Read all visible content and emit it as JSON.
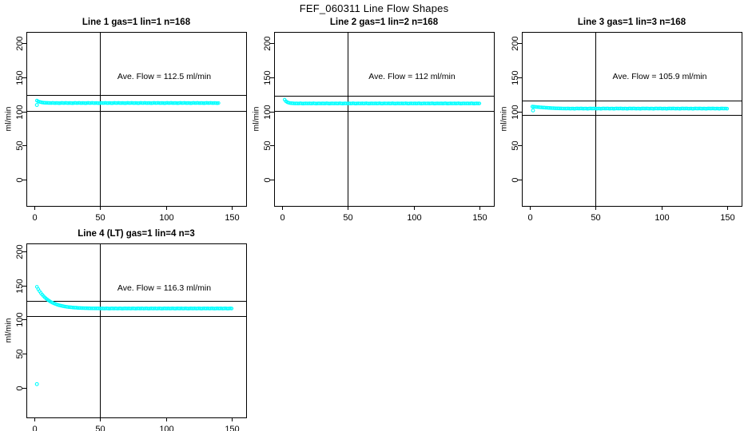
{
  "title": "FEF_060311  Line Flow Shapes",
  "colors": {
    "series": "#00FFFF",
    "axis": "#000000",
    "background": "#FFFFFF"
  },
  "chart_data": [
    {
      "type": "scatter",
      "title": "Line 1 gas=1 lin=1 n=168",
      "annotation": "Ave. Flow =  112.5  ml/min",
      "avg_flow_ml_min": 112.5,
      "n": 168,
      "ylabel": "ml/min",
      "xticks": [
        0,
        50,
        100,
        150
      ],
      "yticks": [
        0,
        50,
        100,
        150,
        200
      ],
      "xlim": [
        -6,
        161
      ],
      "ylim": [
        -39,
        217
      ],
      "vline_x": 50,
      "hlines_y": [
        123.8,
        101.3
      ],
      "marker": "open-circle",
      "series_color": "#00FFFF",
      "x0": 2,
      "dx": 1,
      "y": [
        116,
        114.9,
        114.1,
        113.6,
        113.2,
        112.9,
        112.8,
        112.7,
        112.6,
        112.5,
        112.5,
        112.4,
        112.6,
        112.4,
        112.3,
        112.5,
        112.4,
        112.2,
        112.4,
        112.6,
        112.4,
        112.4,
        112.6,
        112.4,
        112.3,
        112.5,
        112.4,
        112.2,
        112.4,
        112.6,
        112.4,
        112.4,
        112.6,
        112.4,
        112.3,
        112.5,
        112.4,
        112.2,
        112.4,
        112.6,
        112.4,
        112.4,
        112.6,
        112.4,
        112.3,
        112.5,
        112.4,
        112.2,
        112.4,
        112.6,
        112.4,
        112.4,
        112.6,
        112.4,
        112.3,
        112.5,
        112.4,
        112.2,
        112.4,
        112.6,
        112.4,
        112.4,
        112.6,
        112.4,
        112.3,
        112.5,
        112.4,
        112.2,
        112.4,
        112.6,
        112.4,
        112.4,
        112.6,
        112.4,
        112.3,
        112.5,
        112.4,
        112.2,
        112.4,
        112.6,
        112.4,
        112.4,
        112.6,
        112.4,
        112.3,
        112.5,
        112.4,
        112.2,
        112.4,
        112.6,
        112.4,
        112.4,
        112.6,
        112.4,
        112.3,
        112.5,
        112.4,
        112.2,
        112.4,
        112.6,
        112.4,
        112.4,
        112.6,
        112.4,
        112.3,
        112.5,
        112.4,
        112.2,
        112.4,
        112.6,
        112.4,
        112.4,
        112.6,
        112.4,
        112.3,
        112.5,
        112.4,
        112.2,
        112.4,
        112.6,
        112.4,
        112.4,
        112.6,
        112.4,
        112.3,
        112.5,
        112.4,
        112.2,
        112.4,
        112.6,
        112.4,
        112.4,
        112.6,
        112.4,
        112.3,
        112.5,
        112.4,
        112.2,
        112.4
      ],
      "extra_points": [
        [
          2,
          109.5
        ]
      ]
    },
    {
      "type": "scatter",
      "title": "Line 2 gas=1 lin=2 n=168",
      "annotation": "Ave. Flow =  112  ml/min",
      "avg_flow_ml_min": 112,
      "n": 168,
      "ylabel": "ml/min",
      "xticks": [
        0,
        50,
        100,
        150
      ],
      "yticks": [
        0,
        50,
        100,
        150,
        200
      ],
      "xlim": [
        -6,
        161
      ],
      "ylim": [
        -39,
        217
      ],
      "vline_x": 50,
      "hlines_y": [
        123.2,
        100.8
      ],
      "marker": "open-circle",
      "series_color": "#00FFFF",
      "x0": 2,
      "dx": 1,
      "y": [
        117.3,
        115,
        113.6,
        112.9,
        112.4,
        112.2,
        112,
        111.9,
        111.8,
        111.9,
        111.7,
        111.8,
        112,
        111.8,
        111.6,
        111.8,
        111.9,
        111.8,
        111.8,
        111.9,
        111.7,
        111.8,
        112,
        111.8,
        111.6,
        111.8,
        111.9,
        111.8,
        111.8,
        111.9,
        111.7,
        111.8,
        112,
        111.8,
        111.6,
        111.8,
        111.9,
        111.8,
        111.8,
        111.9,
        111.7,
        111.8,
        112,
        111.8,
        111.6,
        111.8,
        111.9,
        111.8,
        111.8,
        111.9,
        111.7,
        111.8,
        112,
        111.8,
        111.6,
        111.8,
        111.9,
        111.8,
        111.8,
        111.9,
        111.7,
        111.8,
        112,
        111.8,
        111.6,
        111.8,
        111.9,
        111.8,
        111.8,
        111.9,
        111.7,
        111.8,
        112,
        111.8,
        111.6,
        111.8,
        111.9,
        111.8,
        111.8,
        111.9,
        111.7,
        111.8,
        112,
        111.8,
        111.6,
        111.8,
        111.9,
        111.8,
        111.8,
        111.9,
        111.7,
        111.8,
        112,
        111.8,
        111.6,
        111.8,
        111.9,
        111.8,
        111.8,
        111.9,
        111.7,
        111.8,
        112,
        111.8,
        111.6,
        111.8,
        111.9,
        111.8,
        111.8,
        111.9,
        111.7,
        111.8,
        112,
        111.8,
        111.6,
        111.8,
        111.9,
        111.8,
        111.8,
        111.9,
        111.7,
        111.8,
        112,
        111.8,
        111.6,
        111.8,
        111.9,
        111.8,
        111.8,
        111.9,
        111.7,
        111.8,
        112,
        111.8,
        111.6,
        111.8,
        111.9,
        111.8,
        111.8,
        111.9,
        111.7,
        111.8,
        112,
        111.8,
        111.6,
        111.8,
        111.9,
        111.8,
        111.8
      ],
      "extra_points": []
    },
    {
      "type": "scatter",
      "title": "Line 3 gas=1 lin=3 n=168",
      "annotation": "Ave. Flow =  105.9  ml/min",
      "avg_flow_ml_min": 105.9,
      "n": 168,
      "ylabel": "ml/min",
      "xticks": [
        0,
        50,
        100,
        150
      ],
      "yticks": [
        0,
        50,
        100,
        150,
        200
      ],
      "xlim": [
        -6,
        161
      ],
      "ylim": [
        -39,
        217
      ],
      "vline_x": 50,
      "hlines_y": [
        116.5,
        95.3
      ],
      "marker": "open-circle",
      "series_color": "#00FFFF",
      "x0": 2,
      "dx": 1,
      "y": [
        107.2,
        107,
        106.8,
        106.6,
        106.5,
        106.3,
        106.1,
        106,
        105.8,
        105.7,
        105.5,
        105.4,
        105.3,
        105.1,
        105,
        104.9,
        104.8,
        104.7,
        104.6,
        104.6,
        104.5,
        104.4,
        104.4,
        104.3,
        104.3,
        104.2,
        104.2,
        104.4,
        104.2,
        104.1,
        104.3,
        104.2,
        104,
        104.2,
        104.4,
        104.2,
        104.2,
        104.4,
        104.2,
        104.1,
        104.3,
        104.2,
        104,
        104.2,
        104.4,
        104.2,
        104.2,
        104.4,
        104.2,
        104.1,
        104.3,
        104.2,
        104,
        104.2,
        104.4,
        104.2,
        104.2,
        104.4,
        104.2,
        104.1,
        104.3,
        104.2,
        104,
        104.2,
        104.4,
        104.2,
        104.2,
        104.4,
        104.2,
        104.1,
        104.3,
        104.2,
        104,
        104.2,
        104.4,
        104.2,
        104.2,
        104.4,
        104.2,
        104.1,
        104.3,
        104.2,
        104,
        104.2,
        104.4,
        104.2,
        104.2,
        104.4,
        104.2,
        104.1,
        104.3,
        104.2,
        104,
        104.2,
        104.4,
        104.2,
        104.2,
        104.4,
        104.2,
        104.1,
        104.3,
        104.2,
        104,
        104.2,
        104.4,
        104.2,
        104.2,
        104.4,
        104.2,
        104.1,
        104.3,
        104.2,
        104,
        104.2,
        104.4,
        104.2,
        104.2,
        104.4,
        104.2,
        104.1,
        104.3,
        104.2,
        104,
        104.2,
        104.4,
        104.2,
        104.2,
        104.4,
        104.2,
        104.1,
        104.3,
        104.2,
        104,
        104.2,
        104.4,
        104.2,
        104.2,
        104.4,
        104.2,
        104.1,
        104.3,
        104.2,
        104,
        104.2,
        104.4,
        104.2,
        104.2,
        104.3,
        104.1
      ],
      "extra_points": [
        [
          2.5,
          101.5
        ]
      ]
    },
    {
      "type": "scatter",
      "title": "Line 4 (LT) gas=1 lin=4 n=3",
      "annotation": "Ave. Flow =  116.3  ml/min",
      "avg_flow_ml_min": 116.3,
      "n": 3,
      "ylabel": "ml/min",
      "xticks": [
        0,
        50,
        100,
        150
      ],
      "yticks": [
        0,
        50,
        100,
        150,
        200
      ],
      "xlim": [
        -6,
        161
      ],
      "ylim": [
        -44,
        212
      ],
      "vline_x": 50,
      "hlines_y": [
        127.9,
        104.7
      ],
      "marker": "open-circle",
      "series_color": "#00FFFF",
      "x0": 2,
      "dx": 1,
      "y": [
        148.2,
        144.8,
        141.8,
        139.1,
        136.7,
        134.6,
        132.6,
        130.9,
        129.4,
        128,
        126.7,
        125.6,
        124.6,
        123.8,
        123,
        122.2,
        121.6,
        121,
        120.5,
        120.1,
        119.7,
        119.3,
        119,
        118.7,
        118.4,
        118.2,
        118,
        117.8,
        117.6,
        117.5,
        117.4,
        117.2,
        117.1,
        117,
        116.9,
        116.9,
        116.8,
        116.7,
        116.7,
        116.6,
        116.6,
        116.5,
        116.5,
        116.5,
        116.4,
        116.4,
        116.4,
        116.4,
        116.3,
        116.3,
        116.4,
        116.2,
        116.3,
        116.5,
        116.3,
        116.1,
        116.3,
        116.4,
        116.3,
        116.3,
        116.4,
        116.2,
        116.3,
        116.5,
        116.3,
        116.1,
        116.3,
        116.4,
        116.3,
        116.3,
        116.4,
        116.2,
        116.3,
        116.5,
        116.3,
        116.1,
        116.3,
        116.4,
        116.3,
        116.3,
        116.4,
        116.2,
        116.3,
        116.5,
        116.3,
        116.1,
        116.3,
        116.4,
        116.3,
        116.3,
        116.4,
        116.2,
        116.3,
        116.5,
        116.3,
        116.1,
        116.3,
        116.4,
        116.3,
        116.3,
        116.4,
        116.2,
        116.3,
        116.5,
        116.3,
        116.1,
        116.3,
        116.4,
        116.3,
        116.3,
        116.4,
        116.2,
        116.3,
        116.5,
        116.3,
        116.1,
        116.3,
        116.4,
        116.3,
        116.3,
        116.4,
        116.2,
        116.3,
        116.5,
        116.3,
        116.1,
        116.3,
        116.4,
        116.3,
        116.3,
        116.4,
        116.2,
        116.3,
        116.5,
        116.3,
        116.1,
        116.3,
        116.4,
        116.3,
        116.3,
        116.4,
        116.2,
        116.3,
        116.5,
        116.3,
        116.1,
        116.3,
        116.4,
        116.3
      ],
      "extra_points": [
        [
          2,
          5
        ]
      ]
    }
  ]
}
